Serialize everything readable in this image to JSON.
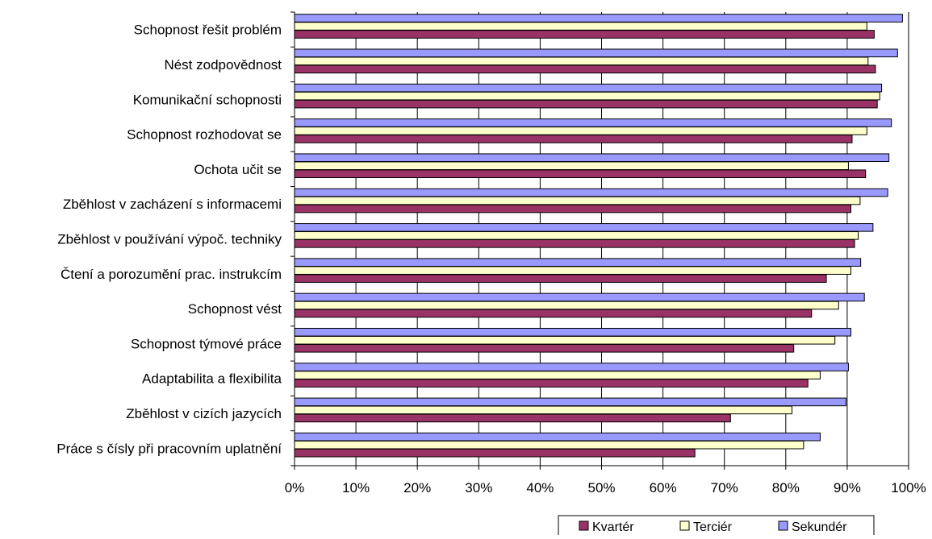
{
  "chart_data": {
    "type": "bar",
    "orientation": "horizontal",
    "categories": [
      "Schopnost řešit problém",
      "Nést zodpovědnost",
      "Komunikační schopnosti",
      "Schopnost rozhodovat se",
      "Ochota učit se",
      "Zběhlost v zacházení s informacemi",
      "Zběhlost v používání výpoč. techniky",
      "Čtení a porozumění prac. instrukcím",
      "Schopnost vést",
      "Schopnost týmové práce",
      "Adaptabilita a flexibilita",
      "Zběhlost v cizích jazycích",
      "Práce s čísly při pracovním uplatnění"
    ],
    "series": [
      {
        "name": "Sekundér",
        "color": "#9999ff",
        "values": [
          99,
          98.2,
          95.6,
          97.2,
          96.8,
          96.6,
          94.2,
          92.2,
          92.8,
          90.6,
          90.2,
          89.8,
          85.6
        ]
      },
      {
        "name": "Terciér",
        "color": "#ffffcc",
        "values": [
          93.2,
          93.4,
          95.3,
          93.2,
          90.2,
          92.1,
          91.8,
          90.6,
          88.6,
          88.0,
          85.6,
          81.0,
          82.9
        ]
      },
      {
        "name": "Kvartér",
        "color": "#993366",
        "values": [
          94.4,
          94.6,
          94.9,
          90.8,
          93.0,
          90.6,
          91.2,
          86.6,
          84.2,
          81.3,
          83.6,
          71.0,
          65.2
        ]
      }
    ],
    "xlim": [
      0,
      100
    ],
    "xticks": [
      "0%",
      "10%",
      "20%",
      "30%",
      "40%",
      "50%",
      "60%",
      "70%",
      "80%",
      "90%",
      "100%"
    ],
    "grid": true,
    "legend": {
      "placement": "bottom-right",
      "entries": [
        "Kvartér",
        "Terciér",
        "Sekundér"
      ]
    },
    "title": "",
    "xlabel": "",
    "ylabel": ""
  }
}
